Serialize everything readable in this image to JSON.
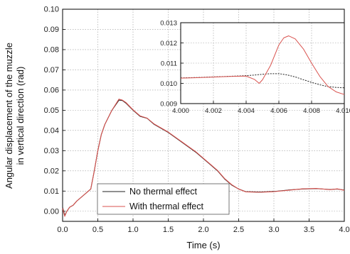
{
  "chart_data": [
    {
      "type": "line",
      "title": "",
      "xlabel": "Time (s)",
      "ylabel": "Angular displacement of the muzzle in vertical direction (rad)",
      "ylabel_lines": [
        "Angular displacement of the muzzle",
        "in vertical direction (rad)"
      ],
      "xlim": [
        0,
        4.0
      ],
      "ylim": [
        -0.005,
        0.1
      ],
      "xticks": [
        0.0,
        0.5,
        1.0,
        1.5,
        2.0,
        2.5,
        3.0,
        3.5,
        4.0
      ],
      "xtick_labels": [
        "0.0",
        "0.5",
        "1.0",
        "1.5",
        "2.0",
        "2.5",
        "3.0",
        "3.5",
        "4.0"
      ],
      "yticks": [
        0.0,
        0.01,
        0.02,
        0.03,
        0.04,
        0.05,
        0.06,
        0.07,
        0.08,
        0.09,
        0.1
      ],
      "ytick_labels": [
        "0.00",
        "0.01",
        "0.02",
        "0.03",
        "0.04",
        "0.05",
        "0.06",
        "0.07",
        "0.08",
        "0.09",
        "0.10"
      ],
      "grid": true,
      "legend_position": "bottom-left",
      "series": [
        {
          "name": "No thermal effect",
          "color": "#222222",
          "x": [
            0,
            0.03,
            0.06,
            0.1,
            0.15,
            0.2,
            0.3,
            0.4,
            0.45,
            0.5,
            0.55,
            0.6,
            0.7,
            0.8,
            0.85,
            0.9,
            1.0,
            1.1,
            1.2,
            1.3,
            1.5,
            1.7,
            1.9,
            2.0,
            2.1,
            2.2,
            2.3,
            2.4,
            2.5,
            2.6,
            2.8,
            3.0,
            3.2,
            3.4,
            3.6,
            3.8,
            3.9,
            4.0
          ],
          "y": [
            0.002,
            -0.002,
            0.0,
            0.002,
            0.003,
            0.005,
            0.008,
            0.011,
            0.02,
            0.03,
            0.038,
            0.043,
            0.05,
            0.055,
            0.0548,
            0.0535,
            0.05,
            0.047,
            0.046,
            0.043,
            0.039,
            0.034,
            0.029,
            0.026,
            0.023,
            0.02,
            0.016,
            0.013,
            0.011,
            0.0097,
            0.0095,
            0.0098,
            0.0105,
            0.011,
            0.0112,
            0.0108,
            0.011,
            0.0105
          ]
        },
        {
          "name": "With thermal effect",
          "color": "#d9534f",
          "x": [
            0,
            0.03,
            0.06,
            0.1,
            0.15,
            0.2,
            0.3,
            0.4,
            0.45,
            0.5,
            0.55,
            0.6,
            0.7,
            0.8,
            0.85,
            0.9,
            1.0,
            1.1,
            1.2,
            1.3,
            1.5,
            1.7,
            1.9,
            2.0,
            2.1,
            2.2,
            2.3,
            2.4,
            2.5,
            2.6,
            2.8,
            3.0,
            3.2,
            3.4,
            3.6,
            3.8,
            3.9,
            4.0
          ],
          "y": [
            0.0015,
            -0.0025,
            0.0,
            0.002,
            0.003,
            0.005,
            0.008,
            0.011,
            0.02,
            0.03,
            0.038,
            0.043,
            0.05,
            0.0555,
            0.055,
            0.0538,
            0.0502,
            0.0472,
            0.0461,
            0.0432,
            0.0392,
            0.0342,
            0.0292,
            0.0262,
            0.0232,
            0.0202,
            0.0162,
            0.0132,
            0.011,
            0.0096,
            0.0094,
            0.0097,
            0.0104,
            0.0111,
            0.0113,
            0.0107,
            0.0111,
            0.0104
          ]
        }
      ]
    },
    {
      "type": "line",
      "title": "",
      "xlabel": "",
      "ylabel": "",
      "xlim": [
        4.0,
        4.01
      ],
      "ylim": [
        0.009,
        0.013
      ],
      "xticks": [
        4.0,
        4.002,
        4.004,
        4.006,
        4.008,
        4.01
      ],
      "xtick_labels": [
        "4.000",
        "4.002",
        "4.004",
        "4.006",
        "4.008",
        "4.010"
      ],
      "yticks": [
        0.009,
        0.01,
        0.011,
        0.012,
        0.013
      ],
      "ytick_labels": [
        "0.009",
        "0.010",
        "0.011",
        "0.012",
        "0.013"
      ],
      "grid": true,
      "series": [
        {
          "name": "No thermal effect",
          "color": "#222222",
          "x": [
            4.0,
            4.001,
            4.002,
            4.003,
            4.004,
            4.0045,
            4.005,
            4.0055,
            4.006,
            4.0065,
            4.007,
            4.0075,
            4.008,
            4.0085,
            4.009,
            4.0095,
            4.01
          ],
          "y": [
            0.01027,
            0.01029,
            0.01032,
            0.01035,
            0.01038,
            0.01041,
            0.01045,
            0.01048,
            0.01048,
            0.01042,
            0.01032,
            0.01018,
            0.01005,
            0.00993,
            0.00984,
            0.0098,
            0.00978
          ]
        },
        {
          "name": "With thermal effect",
          "color": "#d9534f",
          "x": [
            4.0,
            4.001,
            4.002,
            4.003,
            4.004,
            4.0045,
            4.0048,
            4.005,
            4.0055,
            4.006,
            4.0063,
            4.0066,
            4.007,
            4.0075,
            4.008,
            4.0085,
            4.009,
            4.0095,
            4.01
          ],
          "y": [
            0.01026,
            0.01028,
            0.01031,
            0.01034,
            0.01036,
            0.0102,
            0.01,
            0.01018,
            0.0109,
            0.0119,
            0.01225,
            0.01235,
            0.0122,
            0.0117,
            0.011,
            0.01035,
            0.00985,
            0.00958,
            0.00945
          ]
        }
      ]
    }
  ]
}
